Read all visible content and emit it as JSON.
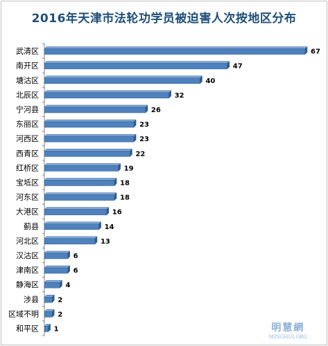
{
  "chart_data": {
    "type": "bar",
    "orientation": "horizontal",
    "title": "2016年天津市法轮功学员被迫害人次按地区分布",
    "categories": [
      "武清区",
      "南开区",
      "塘沽区",
      "北辰区",
      "宁河县",
      "东丽区",
      "河西区",
      "西青区",
      "红桥区",
      "宝坻区",
      "河东区",
      "大港区",
      "蓟县",
      "河北区",
      "汉沽区",
      "津南区",
      "静海区",
      "涉县",
      "区域不明",
      "和平区"
    ],
    "values": [
      67,
      47,
      40,
      32,
      26,
      23,
      23,
      22,
      19,
      18,
      18,
      16,
      14,
      13,
      6,
      6,
      4,
      2,
      2,
      1
    ],
    "xlim": [
      0,
      67
    ],
    "grid": false,
    "legend": "none",
    "bar_color": "#4f81bd",
    "bar_edge_color": "#2e5a8c"
  },
  "watermark": {
    "cn": "明慧網",
    "en": "MINGHUI.ORG"
  }
}
